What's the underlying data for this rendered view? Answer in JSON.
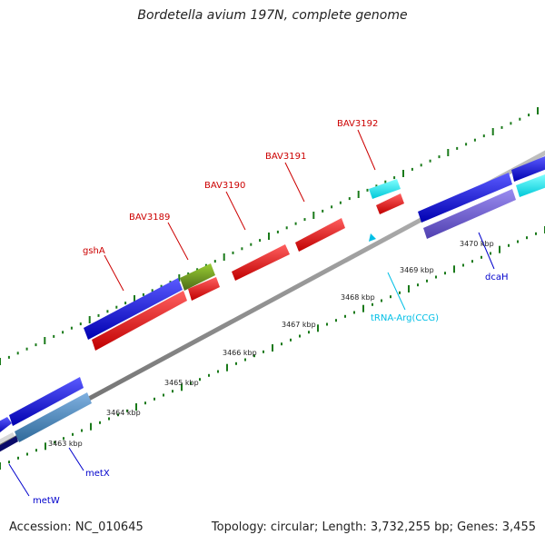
{
  "title": "Bordetella avium 197N, complete genome",
  "footer": {
    "accession": "Accession: NC_010645",
    "stats": "Topology: circular; Length: 3,732,255 bp; Genes: 3,455"
  },
  "ticks": [
    "3463 kbp",
    "3464 kbp",
    "3465 kbp",
    "3466 kbp",
    "3467 kbp",
    "3468 kbp",
    "3469 kbp",
    "3470 kbp"
  ],
  "gene_labels": [
    {
      "name": "metW",
      "color": "#0000cc"
    },
    {
      "name": "metX",
      "color": "#0000cc"
    },
    {
      "name": "gshA",
      "color": "#cc0000"
    },
    {
      "name": "BAV3189",
      "color": "#cc0000"
    },
    {
      "name": "BAV3190",
      "color": "#cc0000"
    },
    {
      "name": "BAV3191",
      "color": "#cc0000"
    },
    {
      "name": "BAV3192",
      "color": "#cc0000"
    },
    {
      "name": "tRNA-Arg(CCG)",
      "color": "#00bfe6"
    },
    {
      "name": "dcaH",
      "color": "#0000cc"
    }
  ],
  "colors": {
    "forward_gene": "#1111dd",
    "reverse_gene": "#ee1111",
    "trna": "#00e5ee",
    "green_gene": "#6b8e23",
    "steel_gene": "#4682b4",
    "slate_gene": "#6a5acd",
    "backbone": "#888888",
    "tick_marks": "#1a7a1a"
  }
}
